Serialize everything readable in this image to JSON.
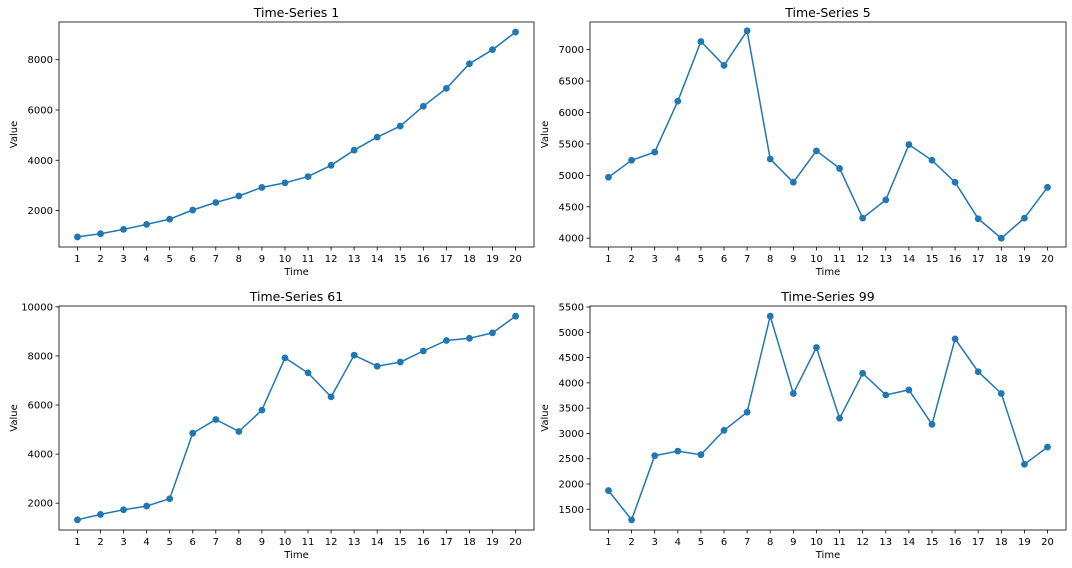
{
  "chart_data": [
    {
      "type": "line",
      "title": "Time-Series 1",
      "xlabel": "Time",
      "ylabel": "Value",
      "x": [
        1,
        2,
        3,
        4,
        5,
        6,
        7,
        8,
        9,
        10,
        11,
        12,
        13,
        14,
        15,
        16,
        17,
        18,
        19,
        20
      ],
      "values": [
        950,
        1080,
        1250,
        1450,
        1660,
        2020,
        2320,
        2580,
        2920,
        3100,
        3350,
        3800,
        4400,
        4920,
        5360,
        6150,
        6860,
        7840,
        8400,
        9100
      ],
      "xlim": [
        0.2,
        20.8
      ],
      "ylim": [
        550,
        9500
      ],
      "yticks": [
        2000,
        4000,
        6000,
        8000
      ],
      "color": "#1f77b4",
      "grid": false,
      "markers": true
    },
    {
      "type": "line",
      "title": "Time-Series 5",
      "xlabel": "Time",
      "ylabel": "Value",
      "x": [
        1,
        2,
        3,
        4,
        5,
        6,
        7,
        8,
        9,
        10,
        11,
        12,
        13,
        14,
        15,
        16,
        17,
        18,
        19,
        20
      ],
      "values": [
        4970,
        5240,
        5370,
        6180,
        7130,
        6750,
        7300,
        5260,
        4890,
        5390,
        5110,
        4320,
        4610,
        5490,
        5240,
        4890,
        4310,
        4000,
        4320,
        4810
      ],
      "xlim": [
        0.2,
        20.8
      ],
      "ylim": [
        3860,
        7440
      ],
      "yticks": [
        4000,
        4500,
        5000,
        5500,
        6000,
        6500,
        7000
      ],
      "color": "#1f77b4",
      "grid": false,
      "markers": true
    },
    {
      "type": "line",
      "title": "Time-Series 61",
      "xlabel": "Time",
      "ylabel": "Value",
      "x": [
        1,
        2,
        3,
        4,
        5,
        6,
        7,
        8,
        9,
        10,
        11,
        12,
        13,
        14,
        15,
        16,
        17,
        18,
        19,
        20
      ],
      "values": [
        1320,
        1540,
        1730,
        1880,
        2180,
        4850,
        5410,
        4920,
        5790,
        7920,
        7310,
        6330,
        8030,
        7580,
        7750,
        8200,
        8630,
        8720,
        8940,
        9620
      ],
      "xlim": [
        0.2,
        20.8
      ],
      "ylim": [
        905,
        10035
      ],
      "yticks": [
        2000,
        4000,
        6000,
        8000,
        10000
      ],
      "color": "#1f77b4",
      "grid": false,
      "markers": true
    },
    {
      "type": "line",
      "title": "Time-Series 99",
      "xlabel": "Time",
      "ylabel": "Value",
      "x": [
        1,
        2,
        3,
        4,
        5,
        6,
        7,
        8,
        9,
        10,
        11,
        12,
        13,
        14,
        15,
        16,
        17,
        18,
        19,
        20
      ],
      "values": [
        1870,
        1290,
        2560,
        2650,
        2580,
        3060,
        3420,
        5320,
        3790,
        4700,
        3300,
        4190,
        3760,
        3860,
        3180,
        4870,
        4220,
        3790,
        2390,
        2730
      ],
      "xlim": [
        0.2,
        20.8
      ],
      "ylim": [
        1090,
        5520
      ],
      "yticks": [
        1500,
        2000,
        2500,
        3000,
        3500,
        4000,
        4500,
        5000,
        5500
      ],
      "color": "#1f77b4",
      "grid": false,
      "markers": true
    }
  ]
}
